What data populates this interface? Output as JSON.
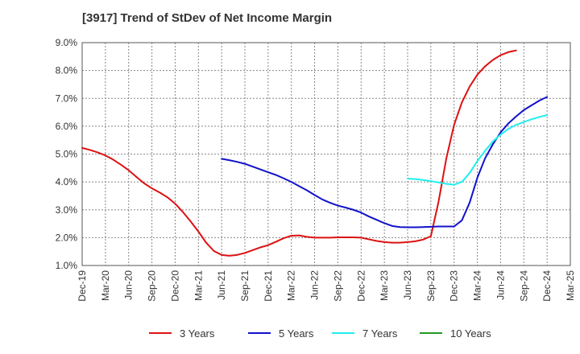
{
  "chart_data": {
    "type": "line",
    "title": "[3917]  Trend of StDev of Net Income Margin",
    "xlabel": "",
    "ylabel": "",
    "ylim": [
      1.0,
      9.0
    ],
    "y_unit": "%",
    "y_ticks": [
      "1.0%",
      "2.0%",
      "3.0%",
      "4.0%",
      "5.0%",
      "6.0%",
      "7.0%",
      "8.0%",
      "9.0%"
    ],
    "x_ticks": [
      "Dec-19",
      "Mar-20",
      "Jun-20",
      "Sep-20",
      "Dec-20",
      "Mar-21",
      "Jun-21",
      "Sep-21",
      "Dec-21",
      "Mar-22",
      "Jun-22",
      "Sep-22",
      "Dec-22",
      "Mar-23",
      "Jun-23",
      "Sep-23",
      "Dec-23",
      "Mar-24",
      "Jun-24",
      "Sep-24",
      "Dec-24",
      "Mar-25"
    ],
    "grid": true,
    "legend_position": "bottom",
    "series": [
      {
        "name": "3 Years",
        "color": "#dd1111",
        "points": [
          [
            "Dec-19",
            5.22
          ],
          [
            "Jan-20",
            5.15
          ],
          [
            "Feb-20",
            5.06
          ],
          [
            "Mar-20",
            4.95
          ],
          [
            "Apr-20",
            4.8
          ],
          [
            "May-20",
            4.62
          ],
          [
            "Jun-20",
            4.42
          ],
          [
            "Jul-20",
            4.18
          ],
          [
            "Aug-20",
            3.95
          ],
          [
            "Sep-20",
            3.77
          ],
          [
            "Oct-20",
            3.62
          ],
          [
            "Nov-20",
            3.45
          ],
          [
            "Dec-20",
            3.22
          ],
          [
            "Jan-21",
            2.92
          ],
          [
            "Feb-21",
            2.58
          ],
          [
            "Mar-21",
            2.22
          ],
          [
            "Apr-21",
            1.82
          ],
          [
            "May-21",
            1.52
          ],
          [
            "Jun-21",
            1.38
          ],
          [
            "Jul-21",
            1.35
          ],
          [
            "Aug-21",
            1.38
          ],
          [
            "Sep-21",
            1.45
          ],
          [
            "Oct-21",
            1.55
          ],
          [
            "Nov-21",
            1.65
          ],
          [
            "Dec-21",
            1.73
          ],
          [
            "Jan-22",
            1.85
          ],
          [
            "Feb-22",
            1.98
          ],
          [
            "Mar-22",
            2.07
          ],
          [
            "Apr-22",
            2.08
          ],
          [
            "May-22",
            2.03
          ],
          [
            "Jun-22",
            2.0
          ],
          [
            "Jul-22",
            2.0
          ],
          [
            "Aug-22",
            2.0
          ],
          [
            "Sep-22",
            2.01
          ],
          [
            "Oct-22",
            2.01
          ],
          [
            "Nov-22",
            2.01
          ],
          [
            "Dec-22",
            2.0
          ],
          [
            "Jan-23",
            1.94
          ],
          [
            "Feb-23",
            1.88
          ],
          [
            "Mar-23",
            1.84
          ],
          [
            "Apr-23",
            1.82
          ],
          [
            "May-23",
            1.82
          ],
          [
            "Jun-23",
            1.84
          ],
          [
            "Jul-23",
            1.87
          ],
          [
            "Aug-23",
            1.93
          ],
          [
            "Sep-23",
            2.05
          ],
          [
            "Oct-23",
            3.3
          ],
          [
            "Nov-23",
            4.85
          ],
          [
            "Dec-23",
            6.05
          ],
          [
            "Jan-24",
            6.85
          ],
          [
            "Feb-24",
            7.42
          ],
          [
            "Mar-24",
            7.85
          ],
          [
            "Apr-24",
            8.15
          ],
          [
            "May-24",
            8.38
          ],
          [
            "Jun-24",
            8.55
          ],
          [
            "Jul-24",
            8.66
          ],
          [
            "Aug-24",
            8.72
          ]
        ]
      },
      {
        "name": "5 Years",
        "color": "#1111cc",
        "points": [
          [
            "Jun-21",
            4.83
          ],
          [
            "Jul-21",
            4.78
          ],
          [
            "Aug-21",
            4.72
          ],
          [
            "Sep-21",
            4.65
          ],
          [
            "Oct-21",
            4.55
          ],
          [
            "Nov-21",
            4.45
          ],
          [
            "Dec-21",
            4.35
          ],
          [
            "Jan-22",
            4.25
          ],
          [
            "Feb-22",
            4.13
          ],
          [
            "Mar-22",
            4.0
          ],
          [
            "Apr-22",
            3.85
          ],
          [
            "May-22",
            3.7
          ],
          [
            "Jun-22",
            3.53
          ],
          [
            "Jul-22",
            3.37
          ],
          [
            "Aug-22",
            3.25
          ],
          [
            "Sep-22",
            3.15
          ],
          [
            "Oct-22",
            3.08
          ],
          [
            "Nov-22",
            3.0
          ],
          [
            "Dec-22",
            2.9
          ],
          [
            "Jan-23",
            2.76
          ],
          [
            "Feb-23",
            2.64
          ],
          [
            "Mar-23",
            2.52
          ],
          [
            "Apr-23",
            2.42
          ],
          [
            "May-23",
            2.38
          ],
          [
            "Jun-23",
            2.37
          ],
          [
            "Jul-23",
            2.37
          ],
          [
            "Aug-23",
            2.38
          ],
          [
            "Sep-23",
            2.39
          ],
          [
            "Oct-23",
            2.4
          ],
          [
            "Nov-23",
            2.4
          ],
          [
            "Dec-23",
            2.4
          ],
          [
            "Jan-24",
            2.62
          ],
          [
            "Feb-24",
            3.25
          ],
          [
            "Mar-24",
            4.15
          ],
          [
            "Apr-24",
            4.85
          ],
          [
            "May-24",
            5.35
          ],
          [
            "Jun-24",
            5.78
          ],
          [
            "Jul-24",
            6.1
          ],
          [
            "Aug-24",
            6.35
          ],
          [
            "Sep-24",
            6.58
          ],
          [
            "Oct-24",
            6.75
          ],
          [
            "Nov-24",
            6.92
          ],
          [
            "Dec-24",
            7.05
          ]
        ]
      },
      {
        "name": "7 Years",
        "color": "#22eeee",
        "points": [
          [
            "Jun-23",
            4.12
          ],
          [
            "Jul-23",
            4.1
          ],
          [
            "Aug-23",
            4.07
          ],
          [
            "Sep-23",
            4.03
          ],
          [
            "Oct-23",
            3.98
          ],
          [
            "Nov-23",
            3.93
          ],
          [
            "Dec-23",
            3.9
          ],
          [
            "Jan-24",
            4.0
          ],
          [
            "Feb-24",
            4.32
          ],
          [
            "Mar-24",
            4.75
          ],
          [
            "Apr-24",
            5.12
          ],
          [
            "May-24",
            5.45
          ],
          [
            "Jun-24",
            5.7
          ],
          [
            "Jul-24",
            5.9
          ],
          [
            "Aug-24",
            6.05
          ],
          [
            "Sep-24",
            6.15
          ],
          [
            "Oct-24",
            6.25
          ],
          [
            "Nov-24",
            6.33
          ],
          [
            "Dec-24",
            6.4
          ]
        ]
      },
      {
        "name": "10 Years",
        "color": "#229922",
        "points": []
      }
    ]
  }
}
